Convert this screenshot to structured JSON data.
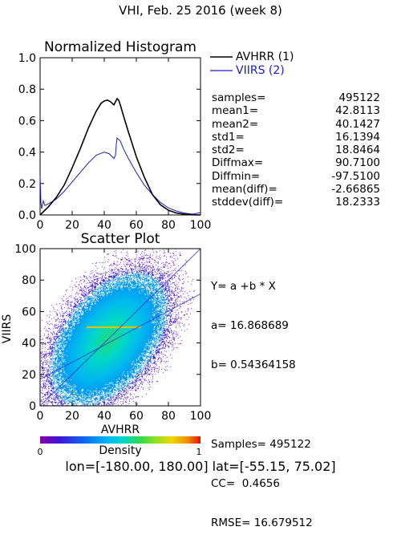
{
  "title": "VHI,  Feb. 25 2016 (week 8)",
  "region": "lon=[-180.00, 180.00] lat=[-55.15, 75.02]",
  "colors": {
    "series1": "#000000",
    "series2": "#1a1acc",
    "fit_line": "#3333cc"
  },
  "histogram": {
    "title": "Normalized Histogram",
    "legend": [
      {
        "name": "AVHRR (1)"
      },
      {
        "name": "VIIRS (2)"
      }
    ],
    "xticks": [
      "0",
      "20",
      "40",
      "60",
      "80",
      "100"
    ],
    "yticks": [
      "0.0",
      "0.2",
      "0.4",
      "0.6",
      "0.8",
      "1.0"
    ],
    "stats": [
      {
        "label": "samples=",
        "value": "495122"
      },
      {
        "label": "mean1=",
        "value": "42.8113"
      },
      {
        "label": "mean2=",
        "value": "40.1427"
      },
      {
        "label": "std1=",
        "value": "16.1394"
      },
      {
        "label": "std2=",
        "value": "18.8464"
      },
      {
        "label": "Diffmax=",
        "value": "90.7100"
      },
      {
        "label": "Diffmin=",
        "value": "-97.5100"
      },
      {
        "label": "mean(diff)=",
        "value": "-2.66865"
      },
      {
        "label": "stddev(diff)=",
        "value": "18.2333"
      }
    ]
  },
  "scatter": {
    "title": "Scatter Plot",
    "xlabel": "AVHRR",
    "ylabel": "VIIRS",
    "xticks": [
      "0",
      "20",
      "40",
      "60",
      "80",
      "100"
    ],
    "yticks": [
      "0",
      "20",
      "40",
      "60",
      "80",
      "100"
    ],
    "fit": [
      "Y= a +b * X",
      "a= 16.868689",
      "b= 0.54364158",
      "",
      "Samples= 495122",
      "CC=  0.4656",
      "RMSE= 16.679512"
    ]
  },
  "colorbar": {
    "label": "Density",
    "min_label": "0",
    "max_label": "1"
  },
  "chart_data": [
    {
      "type": "line",
      "title": "Normalized Histogram",
      "xlim": [
        0,
        100
      ],
      "ylim": [
        0,
        1
      ],
      "series": [
        {
          "name": "AVHRR (1)",
          "x": [
            0,
            5,
            10,
            15,
            20,
            25,
            30,
            35,
            38,
            40,
            42,
            44,
            46,
            47,
            48,
            49,
            50,
            52,
            55,
            60,
            65,
            70,
            75,
            80,
            85,
            90,
            95,
            100
          ],
          "values": [
            0.0,
            0.05,
            0.11,
            0.19,
            0.3,
            0.42,
            0.55,
            0.66,
            0.71,
            0.725,
            0.73,
            0.72,
            0.7,
            0.72,
            0.74,
            0.73,
            0.7,
            0.63,
            0.53,
            0.37,
            0.24,
            0.13,
            0.065,
            0.03,
            0.012,
            0.005,
            0.001,
            0.0
          ]
        },
        {
          "name": "VIIRS (2)",
          "x": [
            0,
            0.5,
            1,
            2,
            3,
            5,
            10,
            15,
            20,
            25,
            30,
            35,
            40,
            43,
            45,
            46,
            47,
            47.5,
            48,
            50,
            52,
            55,
            60,
            65,
            70,
            75,
            80,
            85,
            90,
            95,
            100
          ],
          "values": [
            0.25,
            0.08,
            0.04,
            0.09,
            0.06,
            0.07,
            0.1,
            0.15,
            0.21,
            0.27,
            0.33,
            0.38,
            0.4,
            0.39,
            0.37,
            0.36,
            0.38,
            0.45,
            0.49,
            0.47,
            0.42,
            0.36,
            0.27,
            0.19,
            0.13,
            0.08,
            0.045,
            0.025,
            0.012,
            0.005,
            0.015
          ]
        }
      ]
    },
    {
      "type": "scatter",
      "title": "Scatter Plot",
      "xlabel": "AVHRR",
      "ylabel": "VIIRS",
      "xlim": [
        0,
        100
      ],
      "ylim": [
        0,
        100
      ],
      "fit": {
        "a": 16.868689,
        "b": 0.54364158
      },
      "samples": 495122,
      "cc": 0.4656,
      "rmse": 16.679512,
      "means": {
        "x": 42.8113,
        "y": 40.1427
      },
      "stds": {
        "x": 16.1394,
        "y": 18.8464
      },
      "density_range": [
        0,
        1
      ]
    }
  ]
}
